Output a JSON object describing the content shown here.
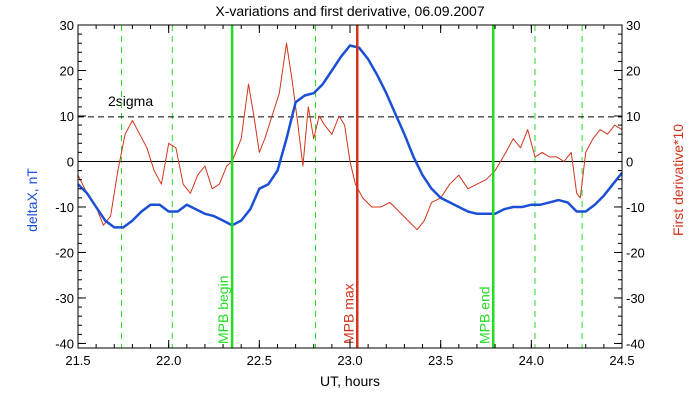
{
  "chart_data": {
    "type": "line",
    "title": "X-variations and first derivative, 06.09.2007",
    "xlabel": "UT, hours",
    "ylabel_left": "deltaX, nT",
    "ylabel_right": "First derivative*10",
    "xlim": [
      21.5,
      24.5
    ],
    "ylim": [
      -41,
      30
    ],
    "x_ticks": [
      "21.5",
      "22.0",
      "22.5",
      "23.0",
      "23.5",
      "24.0",
      "24.5"
    ],
    "y_ticks": [
      "30",
      "20",
      "10",
      "0",
      "-10",
      "-20",
      "-30",
      "-40"
    ],
    "threshold": {
      "label": "2sigma",
      "value": 9.8
    },
    "zero_line": 0,
    "colors": {
      "deltaX": "#1a4fd6",
      "derivative": "#d2341c",
      "green": "#22dd22",
      "red": "#d2341c",
      "left_axis_label": "#1a4fd6",
      "right_axis_label": "#d2341c"
    },
    "series": [
      {
        "name": "deltaX, nT",
        "color": "#1a4fd6",
        "x": [
          21.5,
          21.55,
          21.6,
          21.65,
          21.7,
          21.75,
          21.8,
          21.85,
          21.9,
          21.95,
          22.0,
          22.05,
          22.1,
          22.15,
          22.2,
          22.25,
          22.3,
          22.35,
          22.4,
          22.45,
          22.5,
          22.55,
          22.6,
          22.65,
          22.7,
          22.75,
          22.8,
          22.85,
          22.9,
          22.95,
          23.0,
          23.05,
          23.1,
          23.15,
          23.2,
          23.25,
          23.3,
          23.35,
          23.4,
          23.45,
          23.5,
          23.55,
          23.6,
          23.65,
          23.7,
          23.75,
          23.8,
          23.85,
          23.9,
          23.95,
          24.0,
          24.05,
          24.1,
          24.15,
          24.2,
          24.25,
          24.3,
          24.35,
          24.4,
          24.45,
          24.5
        ],
        "y": [
          -5,
          -7,
          -10,
          -13,
          -14.5,
          -14.5,
          -13,
          -11,
          -9.5,
          -9.5,
          -11,
          -11,
          -9.5,
          -10.5,
          -11.5,
          -12,
          -13,
          -14,
          -13,
          -10.5,
          -6,
          -5,
          -2,
          5,
          13,
          14.5,
          15,
          17,
          20,
          23,
          25.5,
          25,
          22.5,
          19,
          15,
          10.5,
          6,
          1,
          -3,
          -6,
          -8,
          -9,
          -10,
          -11,
          -11.5,
          -11.5,
          -11.5,
          -10.5,
          -10,
          -10,
          -9.5,
          -9.5,
          -9,
          -8.5,
          -9,
          -11,
          -11,
          -9.5,
          -7.5,
          -5,
          -2.5
        ]
      },
      {
        "name": "First derivative*10",
        "color": "#d2341c",
        "x": [
          21.5,
          21.55,
          21.6,
          21.64,
          21.68,
          21.72,
          21.76,
          21.8,
          21.84,
          21.88,
          21.92,
          21.96,
          22.0,
          22.04,
          22.08,
          22.12,
          22.16,
          22.2,
          22.24,
          22.28,
          22.32,
          22.35,
          22.4,
          22.44,
          22.47,
          22.5,
          22.53,
          22.57,
          22.61,
          22.65,
          22.68,
          22.71,
          22.74,
          22.77,
          22.8,
          22.83,
          22.86,
          22.9,
          22.94,
          22.97,
          23.0,
          23.03,
          23.07,
          23.12,
          23.17,
          23.22,
          23.27,
          23.32,
          23.37,
          23.41,
          23.45,
          23.5,
          23.55,
          23.6,
          23.65,
          23.7,
          23.75,
          23.8,
          23.83,
          23.86,
          23.9,
          23.94,
          23.98,
          24.02,
          24.06,
          24.1,
          24.14,
          24.18,
          24.22,
          24.25,
          24.27,
          24.3,
          24.34,
          24.38,
          24.42,
          24.46,
          24.5
        ],
        "y": [
          -3,
          -7,
          -10,
          -14,
          -12,
          -2,
          6,
          9,
          6,
          3,
          -2,
          -5,
          4,
          3,
          -5,
          -7,
          -3,
          -1,
          -6,
          -5,
          -1,
          0,
          5,
          17,
          10,
          2,
          5,
          10,
          15,
          26,
          18,
          9,
          -1,
          12,
          5,
          10,
          8,
          6,
          10,
          8,
          0,
          -5,
          -8,
          -10,
          -10,
          -9,
          -11,
          -13,
          -15,
          -13,
          -9,
          -8,
          -5,
          -3,
          -6,
          -5,
          -4,
          -2,
          0,
          2,
          5,
          3,
          7,
          1,
          2,
          1,
          1,
          0,
          2,
          -7,
          -8,
          2,
          5,
          7,
          6,
          8,
          7
        ]
      }
    ],
    "vertical_markers": [
      {
        "x": 22.35,
        "label": "MPB begin",
        "color": "#22dd22",
        "style": "solid"
      },
      {
        "x": 23.04,
        "label": "MPB max",
        "color": "#d2341c",
        "style": "solid"
      },
      {
        "x": 23.79,
        "label": "MPB end",
        "color": "#22dd22",
        "style": "solid"
      }
    ],
    "dashed_markers": [
      21.74,
      22.02,
      22.81,
      24.02,
      24.28
    ]
  }
}
